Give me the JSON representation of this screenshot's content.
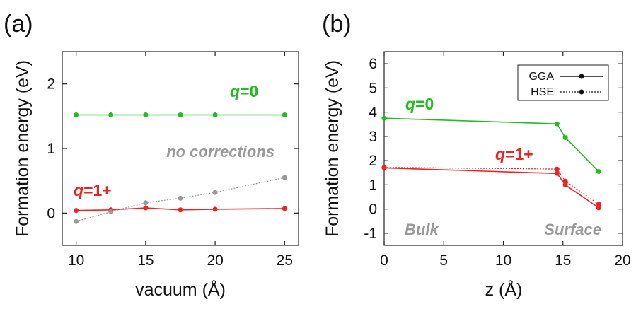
{
  "chart_data": [
    {
      "panel_label": "(a)",
      "type": "line",
      "xlabel": "vacuum (Å)",
      "ylabel": "Formation energy (eV)",
      "xlim": [
        9,
        26
      ],
      "ylim": [
        -0.5,
        2.5
      ],
      "xticks": [
        10,
        15,
        20,
        25
      ],
      "yticks": [
        0,
        1,
        2
      ],
      "grid": false,
      "series": [
        {
          "name": "q=0",
          "label_q": "q",
          "label_rest": "=0",
          "color": "#22bb22",
          "style": "solid",
          "x": [
            10,
            12.5,
            15,
            17.5,
            20,
            25
          ],
          "y": [
            1.52,
            1.52,
            1.52,
            1.52,
            1.52,
            1.52
          ]
        },
        {
          "name": "q=1+",
          "label_q": "q",
          "label_rest": "=1+",
          "color": "#ee2222",
          "style": "solid",
          "x": [
            10,
            12.5,
            15,
            17.5,
            20,
            25
          ],
          "y": [
            0.04,
            0.05,
            0.08,
            0.05,
            0.06,
            0.07
          ]
        },
        {
          "name": "no corrections",
          "color": "#999999",
          "style": "dotted",
          "x": [
            10,
            12.5,
            15,
            17.5,
            20,
            25
          ],
          "y": [
            -0.13,
            0.02,
            0.16,
            0.23,
            0.32,
            0.55
          ]
        }
      ],
      "annotations": [
        "no corrections"
      ]
    },
    {
      "panel_label": "(b)",
      "type": "line",
      "xlabel": "z (Å)",
      "ylabel": "Formation energy (eV)",
      "xlim": [
        0,
        20
      ],
      "ylim": [
        -1.5,
        6.5
      ],
      "xticks": [
        0,
        5,
        10,
        15,
        20
      ],
      "yticks": [
        -1,
        0,
        1,
        2,
        3,
        4,
        5,
        6
      ],
      "grid": false,
      "legend": {
        "placement": "top-right",
        "entries": [
          "GGA",
          "HSE"
        ]
      },
      "series": [
        {
          "name": "q=0 GGA",
          "color": "#22bb22",
          "style": "solid",
          "x": [
            0,
            14.5,
            15.2,
            18
          ],
          "y": [
            3.75,
            3.52,
            2.95,
            1.55
          ]
        },
        {
          "name": "q=1+ GGA",
          "color": "#ee2222",
          "style": "solid",
          "x": [
            0,
            14.5,
            15.2,
            18
          ],
          "y": [
            1.7,
            1.47,
            1.0,
            0.05
          ]
        },
        {
          "name": "q=1+ HSE",
          "color": "#ee2222",
          "style": "dotted",
          "x": [
            0,
            14.5,
            15.2,
            18
          ],
          "y": [
            1.72,
            1.65,
            1.15,
            0.2
          ]
        }
      ],
      "labels": {
        "q0": {
          "q": "q",
          "rest": "=0"
        },
        "q1": {
          "q": "q",
          "rest": "=1+"
        }
      },
      "annotations": [
        "Bulk",
        "Surface"
      ]
    }
  ]
}
